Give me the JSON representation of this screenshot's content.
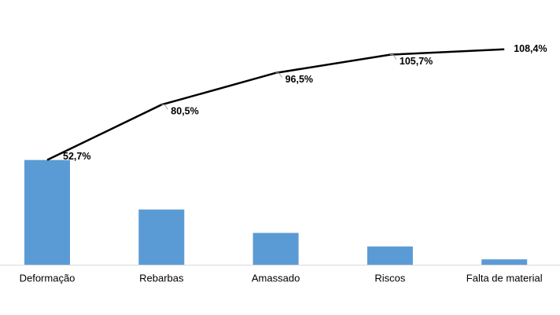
{
  "chart_data": {
    "type": "bar",
    "categories": [
      "Deformação",
      "Rebarbas",
      "Amassado",
      "Riscos",
      "Falta de material"
    ],
    "series": [
      {
        "type": "bar",
        "color": "#5b9bd5",
        "values": [
          52.7,
          27.8,
          16.0,
          9.2,
          2.7
        ]
      },
      {
        "type": "line",
        "color": "#000000",
        "values": [
          52.7,
          80.5,
          96.5,
          105.7,
          108.4
        ],
        "value_labels": [
          "52,7%",
          "80,5%",
          "96,5%",
          "105,7%",
          "108,4%"
        ]
      }
    ]
  }
}
